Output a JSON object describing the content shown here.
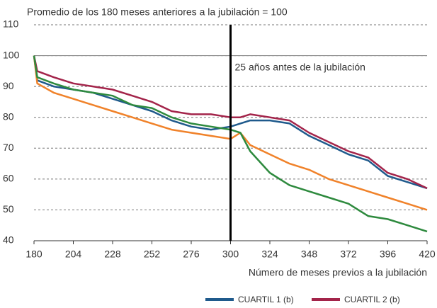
{
  "chart_data": {
    "type": "line",
    "y_title": "Promedio de los 180 meses anteriores a la jubilación = 100",
    "x_title": "Número de meses previos a la jubilación",
    "x": [
      180,
      182,
      192,
      204,
      216,
      228,
      240,
      252,
      264,
      276,
      288,
      300,
      306,
      312,
      324,
      336,
      348,
      360,
      372,
      384,
      396,
      408,
      420
    ],
    "series": [
      {
        "name": "CUARTIL 1 (b)",
        "color": "#1f5a8c",
        "values": [
          100,
          92,
          90,
          89,
          88,
          86,
          84,
          82,
          79,
          77,
          76,
          77,
          78,
          79,
          79,
          78,
          74,
          71,
          68,
          66,
          61,
          59,
          57
        ]
      },
      {
        "name": "CUARTIL 2 (b)",
        "color": "#a3244a",
        "values": [
          100,
          95,
          93,
          91,
          90,
          89,
          87,
          85,
          82,
          81,
          81,
          80,
          80,
          81,
          80,
          79,
          75,
          72,
          69,
          67,
          62,
          60,
          57
        ]
      },
      {
        "color": "#f0822a",
        "values": [
          100,
          91,
          88,
          86,
          84,
          82,
          80,
          78,
          76,
          75,
          74,
          73,
          75,
          71,
          68,
          65,
          63,
          60,
          58,
          56,
          54,
          52,
          50
        ]
      },
      {
        "color": "#2e8a3e",
        "values": [
          100,
          93,
          91,
          89,
          88,
          87,
          84,
          83,
          80,
          78,
          77,
          76,
          75,
          69,
          62,
          58,
          56,
          54,
          52,
          48,
          47,
          45,
          43
        ]
      }
    ],
    "annotation": {
      "text": "25 años antes de la jubilación",
      "x": 300
    },
    "reference_line": 100,
    "xlim": [
      180,
      420
    ],
    "xticks": [
      180,
      204,
      228,
      252,
      276,
      300,
      324,
      348,
      372,
      396,
      420
    ],
    "ylim": [
      40,
      110
    ],
    "yticks": [
      40,
      50,
      60,
      70,
      80,
      90,
      100,
      110
    ],
    "grid": true
  }
}
